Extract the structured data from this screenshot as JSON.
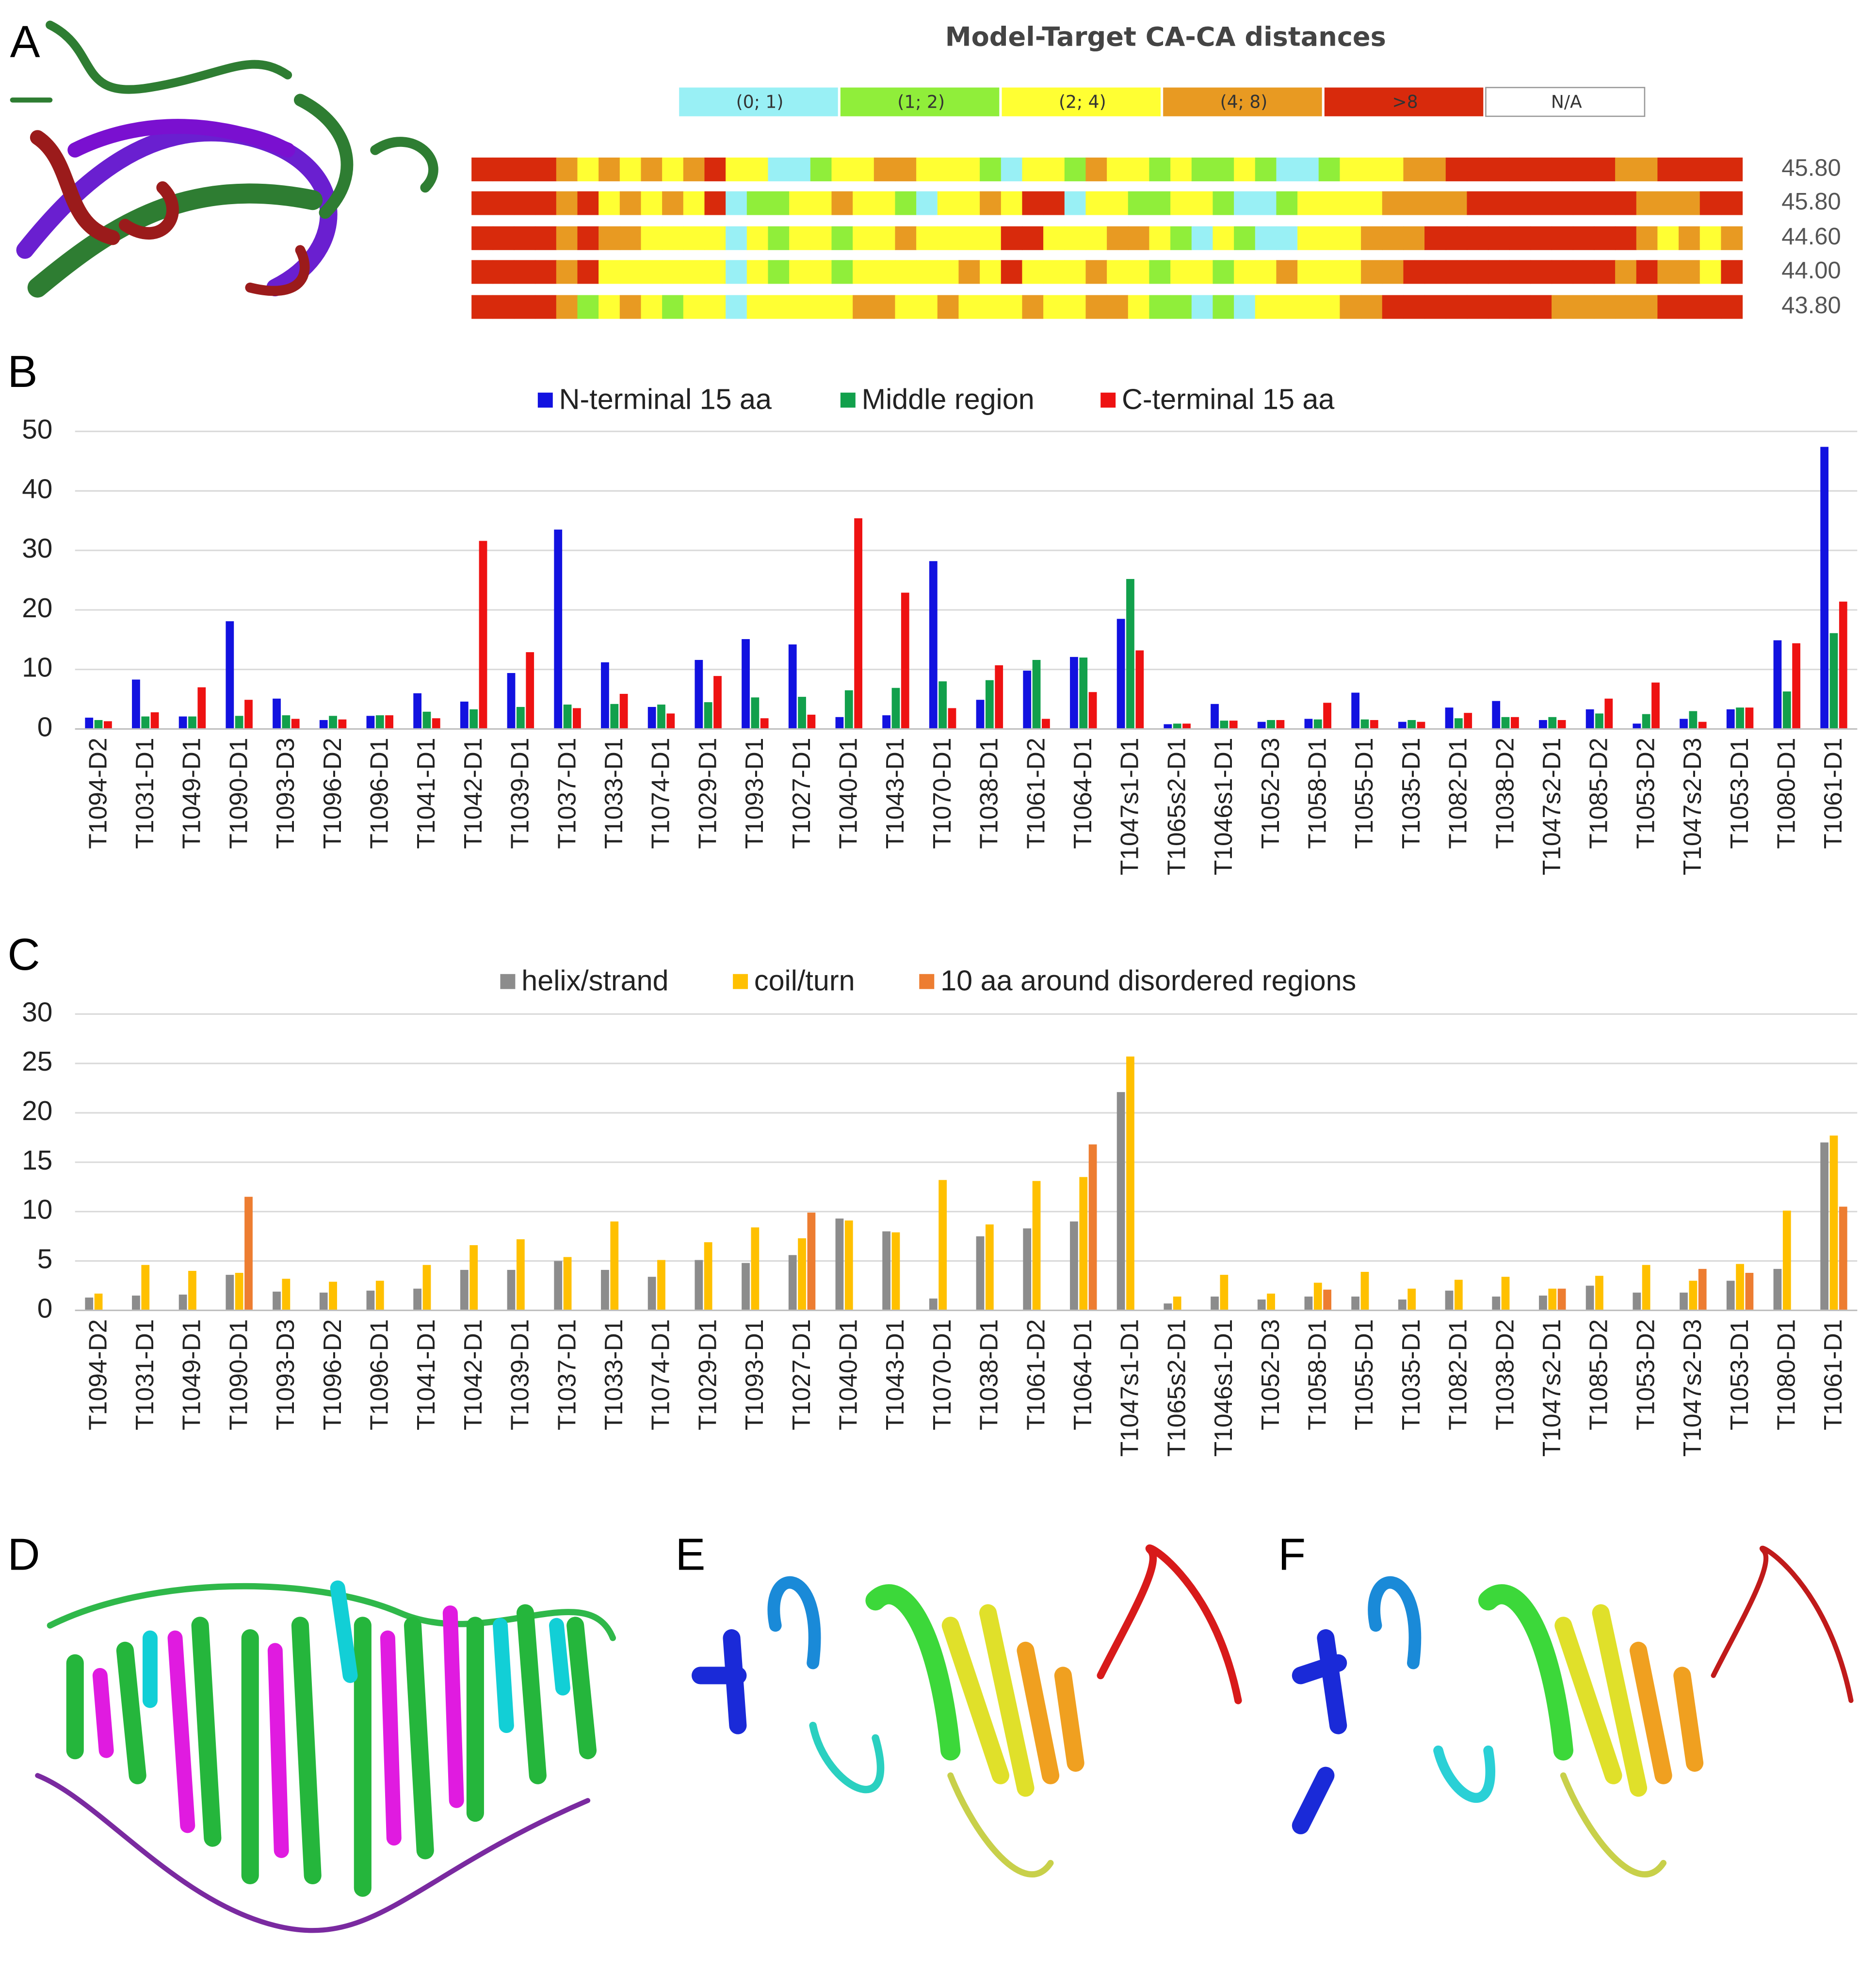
{
  "panels": [
    "A",
    "B",
    "C",
    "D",
    "E",
    "F"
  ],
  "chart_data": [
    {
      "type": "strip",
      "title": "Model-Target CA-CA distances",
      "bins": [
        {
          "label": "(0; 1)",
          "color": "#99f0f5"
        },
        {
          "label": "(1; 2)",
          "color": "#90ee3a"
        },
        {
          "label": "(2; 4)",
          "color": "#ffff33"
        },
        {
          "label": "(4; 8)",
          "color": "#e89a22"
        },
        {
          "label": ">8",
          "color": "#d82a0c"
        },
        {
          "label": "N/A",
          "color": "#ffffff"
        }
      ],
      "rows": [
        [
          4,
          4,
          4,
          4,
          3,
          2,
          3,
          2,
          3,
          2,
          3,
          4,
          2,
          2,
          0,
          0,
          1,
          2,
          2,
          3,
          3,
          2,
          2,
          2,
          1,
          0,
          2,
          2,
          1,
          3,
          2,
          2,
          1,
          2,
          1,
          1,
          2,
          1,
          0,
          0,
          1,
          2,
          2,
          2,
          3,
          3,
          4,
          4,
          4,
          4,
          4,
          4,
          4,
          4,
          3,
          3,
          4,
          4,
          4,
          4
        ],
        [
          4,
          4,
          4,
          4,
          3,
          4,
          2,
          3,
          2,
          3,
          2,
          4,
          0,
          1,
          1,
          2,
          2,
          3,
          2,
          2,
          1,
          0,
          2,
          2,
          3,
          2,
          4,
          4,
          0,
          2,
          2,
          1,
          1,
          2,
          2,
          1,
          0,
          0,
          1,
          2,
          2,
          2,
          2,
          3,
          3,
          3,
          3,
          4,
          4,
          4,
          4,
          4,
          4,
          4,
          4,
          3,
          3,
          3,
          4,
          4
        ],
        [
          4,
          4,
          4,
          4,
          3,
          4,
          3,
          3,
          2,
          2,
          2,
          2,
          0,
          2,
          1,
          2,
          2,
          1,
          2,
          2,
          3,
          2,
          2,
          2,
          2,
          4,
          4,
          2,
          2,
          2,
          3,
          3,
          2,
          1,
          0,
          2,
          1,
          0,
          0,
          2,
          2,
          2,
          3,
          3,
          3,
          4,
          4,
          4,
          4,
          4,
          4,
          4,
          4,
          4,
          4,
          3,
          2,
          3,
          2,
          3
        ],
        [
          4,
          4,
          4,
          4,
          3,
          4,
          2,
          2,
          2,
          2,
          2,
          2,
          0,
          2,
          1,
          2,
          2,
          1,
          2,
          2,
          2,
          2,
          2,
          3,
          2,
          4,
          2,
          2,
          2,
          3,
          2,
          2,
          1,
          2,
          2,
          1,
          2,
          2,
          3,
          2,
          2,
          2,
          3,
          3,
          4,
          4,
          4,
          4,
          4,
          4,
          4,
          4,
          4,
          4,
          3,
          4,
          3,
          3,
          2,
          4
        ],
        [
          4,
          4,
          4,
          4,
          3,
          1,
          2,
          3,
          2,
          1,
          2,
          2,
          0,
          2,
          2,
          2,
          2,
          2,
          3,
          3,
          2,
          2,
          3,
          2,
          2,
          2,
          3,
          2,
          2,
          3,
          3,
          2,
          1,
          1,
          0,
          1,
          0,
          2,
          2,
          2,
          2,
          3,
          3,
          4,
          4,
          4,
          4,
          4,
          4,
          4,
          4,
          3,
          3,
          3,
          3,
          3,
          4,
          4,
          4,
          4
        ]
      ],
      "values": [
        45.8,
        45.8,
        44.6,
        44.0,
        43.8
      ],
      "value_labels": [
        "45.80",
        "45.80",
        "44.60",
        "44.00",
        "43.80"
      ]
    },
    {
      "type": "bar",
      "categories": [
        "T1094-D2",
        "T1031-D1",
        "T1049-D1",
        "T1090-D1",
        "T1093-D3",
        "T1096-D2",
        "T1096-D1",
        "T1041-D1",
        "T1042-D1",
        "T1039-D1",
        "T1037-D1",
        "T1033-D1",
        "T1074-D1",
        "T1029-D1",
        "T1093-D1",
        "T1027-D1",
        "T1040-D1",
        "T1043-D1",
        "T1070-D1",
        "T1038-D1",
        "T1061-D2",
        "T1064-D1",
        "T1047s1-D1",
        "T1065s2-D1",
        "T1046s1-D1",
        "T1052-D3",
        "T1058-D1",
        "T1055-D1",
        "T1035-D1",
        "T1082-D1",
        "T1038-D2",
        "T1047s2-D1",
        "T1085-D2",
        "T1053-D2",
        "T1047s2-D3",
        "T1053-D1",
        "T1080-D1",
        "T1061-D1"
      ],
      "series": [
        {
          "name": "N-terminal 15 aa",
          "color": "#1212e0",
          "values": [
            1.9,
            8.3,
            2.1,
            18.1,
            5.1,
            1.5,
            2.2,
            6.0,
            4.6,
            9.4,
            33.5,
            11.2,
            3.7,
            11.6,
            15.1,
            14.2,
            2.0,
            2.3,
            28.2,
            4.9,
            9.8,
            12.1,
            18.5,
            0.8,
            4.2,
            1.2,
            1.7,
            6.1,
            1.2,
            3.6,
            4.7,
            1.5,
            3.3,
            0.9,
            1.7,
            3.3,
            14.9,
            47.4
          ]
        },
        {
          "name": "Middle region",
          "color": "#12a04c",
          "values": [
            1.5,
            2.1,
            2.1,
            2.2,
            2.3,
            2.2,
            2.3,
            2.9,
            3.3,
            3.7,
            4.1,
            4.2,
            4.1,
            4.5,
            5.3,
            5.4,
            6.5,
            6.9,
            8.0,
            8.2,
            11.6,
            12.0,
            25.2,
            0.9,
            1.4,
            1.5,
            1.6,
            1.6,
            1.5,
            1.8,
            2.0,
            2.0,
            2.6,
            2.5,
            3.0,
            3.6,
            6.3,
            16.1
          ]
        },
        {
          "name": "C-terminal 15 aa",
          "color": "#ee1212",
          "values": [
            1.3,
            2.8,
            7.0,
            4.9,
            1.7,
            1.6,
            2.3,
            1.8,
            31.6,
            12.9,
            3.5,
            5.9,
            2.6,
            8.9,
            1.8,
            2.4,
            35.4,
            22.9,
            3.5,
            10.7,
            1.7,
            6.2,
            13.2,
            0.9,
            1.4,
            1.5,
            4.4,
            1.5,
            1.2,
            2.7,
            2.0,
            1.5,
            5.1,
            7.8,
            1.2,
            3.6,
            14.4,
            21.4
          ]
        }
      ],
      "ylim": [
        0,
        50
      ],
      "yticks": [
        0,
        10,
        20,
        30,
        40,
        50
      ],
      "grid": true,
      "legend": "top"
    },
    {
      "type": "bar",
      "categories": [
        "T1094-D2",
        "T1031-D1",
        "T1049-D1",
        "T1090-D1",
        "T1093-D3",
        "T1096-D2",
        "T1096-D1",
        "T1041-D1",
        "T1042-D1",
        "T1039-D1",
        "T1037-D1",
        "T1033-D1",
        "T1074-D1",
        "T1029-D1",
        "T1093-D1",
        "T1027-D1",
        "T1040-D1",
        "T1043-D1",
        "T1070-D1",
        "T1038-D1",
        "T1061-D2",
        "T1064-D1",
        "T1047s1-D1",
        "T1065s2-D1",
        "T1046s1-D1",
        "T1052-D3",
        "T1058-D1",
        "T1055-D1",
        "T1035-D1",
        "T1082-D1",
        "T1038-D2",
        "T1047s2-D1",
        "T1085-D2",
        "T1053-D2",
        "T1047s2-D3",
        "T1053-D1",
        "T1080-D1",
        "T1061-D1"
      ],
      "series": [
        {
          "name": "helix/strand",
          "color": "#8c8c8c",
          "values": [
            1.3,
            1.5,
            1.6,
            3.6,
            1.9,
            1.8,
            2.0,
            2.2,
            4.1,
            4.1,
            5.0,
            4.1,
            3.4,
            5.1,
            4.8,
            5.6,
            9.3,
            8.0,
            1.2,
            7.5,
            8.3,
            9.0,
            22.1,
            0.7,
            1.4,
            1.1,
            1.4,
            1.4,
            1.1,
            2.0,
            1.4,
            1.5,
            2.5,
            1.8,
            1.8,
            3.0,
            4.2,
            17.0
          ]
        },
        {
          "name": "coil/turn",
          "color": "#ffc000",
          "values": [
            1.7,
            4.6,
            4.0,
            3.8,
            3.2,
            2.9,
            3.0,
            4.6,
            6.6,
            7.2,
            5.4,
            9.0,
            5.1,
            6.9,
            8.4,
            7.3,
            9.1,
            7.9,
            13.2,
            8.7,
            13.1,
            13.5,
            25.7,
            1.4,
            3.6,
            1.7,
            2.8,
            3.9,
            2.2,
            3.1,
            3.4,
            2.2,
            3.5,
            4.6,
            3.0,
            4.7,
            10.1,
            17.7
          ]
        },
        {
          "name": "10 aa around disordered regions",
          "color": "#ed7d31",
          "values": [
            null,
            null,
            null,
            11.5,
            null,
            null,
            null,
            null,
            null,
            null,
            null,
            null,
            null,
            null,
            null,
            9.9,
            null,
            null,
            null,
            null,
            null,
            16.8,
            null,
            null,
            null,
            null,
            2.1,
            null,
            null,
            null,
            null,
            2.2,
            null,
            null,
            4.2,
            3.8,
            null,
            10.5
          ]
        }
      ],
      "ylim": [
        0,
        30
      ],
      "yticks": [
        0,
        5,
        10,
        15,
        20,
        25,
        30
      ],
      "grid": true,
      "legend": "top"
    }
  ]
}
